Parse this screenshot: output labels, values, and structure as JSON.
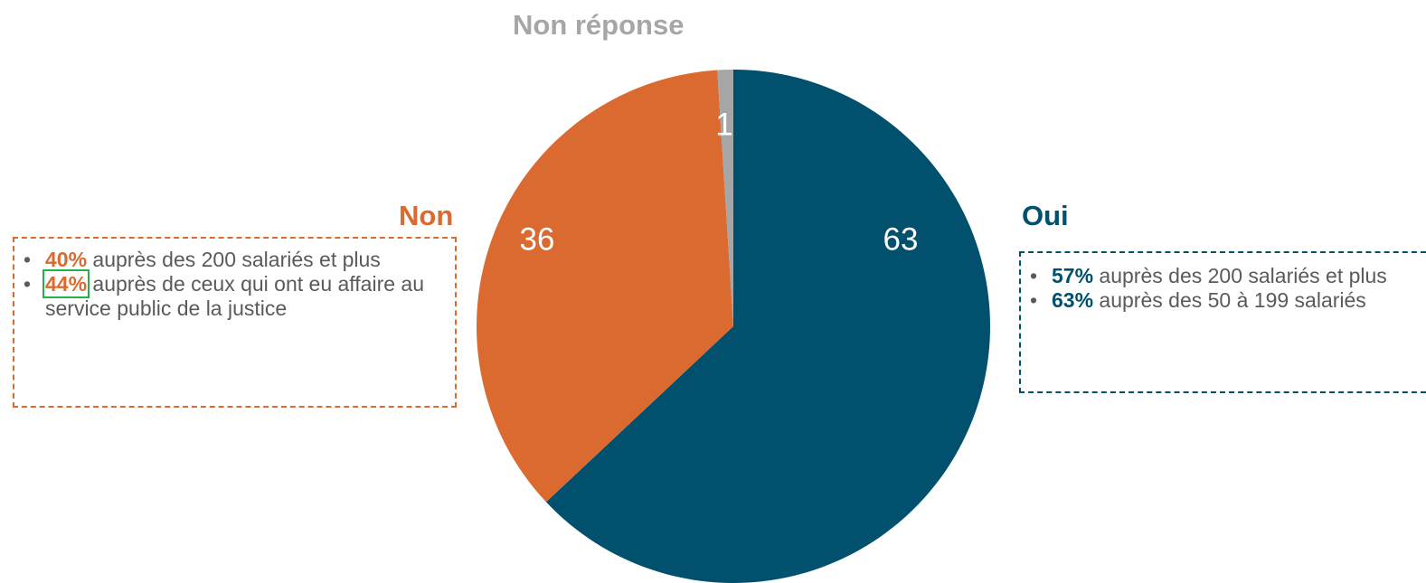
{
  "chart_data": {
    "type": "pie",
    "categories": [
      "Oui",
      "Non",
      "Non réponse"
    ],
    "values": [
      63,
      36,
      1
    ],
    "data_labels": [
      "63",
      "36",
      "1"
    ],
    "colors": [
      "#00506e",
      "#da6a30",
      "#a6a6a6"
    ],
    "start_angle_deg": 0,
    "direction": "clockwise"
  },
  "labels": {
    "oui": "Oui",
    "non": "Non",
    "non_reponse": "Non réponse"
  },
  "colors": {
    "oui": "#00506e",
    "non": "#da6a30",
    "non_reponse": "#a6a6a6",
    "highlight": "#22b14c"
  },
  "notes": {
    "non": [
      {
        "pct": "40%",
        "text": " auprès des 200 salariés et plus",
        "highlight": false
      },
      {
        "pct": "44%",
        "text": " auprès de ceux qui ont eu affaire au service public de la justice",
        "highlight": true
      }
    ],
    "oui": [
      {
        "pct": "57%",
        "text": " auprès des 200 salariés et plus"
      },
      {
        "pct": "63%",
        "text": " auprès des 50 à 199 salariés"
      }
    ]
  }
}
